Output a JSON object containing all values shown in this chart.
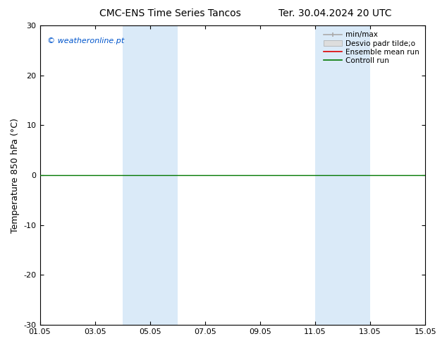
{
  "title_left": "CMC-ENS Time Series Tancos",
  "title_right": "Ter. 30.04.2024 20 UTC",
  "ylabel": "Temperature 850 hPa (°C)",
  "xlabel_ticks": [
    "01.05",
    "03.05",
    "05.05",
    "07.05",
    "09.05",
    "11.05",
    "13.05",
    "15.05"
  ],
  "tick_positions": [
    0,
    2,
    4,
    6,
    8,
    10,
    12,
    14
  ],
  "xlim": [
    0,
    14
  ],
  "ylim": [
    -30,
    30
  ],
  "yticks": [
    -30,
    -20,
    -10,
    0,
    10,
    20,
    30
  ],
  "watermark": "© weatheronline.pt",
  "watermark_color": "#0055cc",
  "shaded_bands": [
    {
      "start": 3,
      "end": 5
    },
    {
      "start": 10,
      "end": 12
    }
  ],
  "shaded_color": "#daeaf8",
  "control_run_color": "#007700",
  "ensemble_mean_color": "#dd0000",
  "minmax_color": "#aaaaaa",
  "stddev_color": "#dddddd",
  "background_color": "#ffffff",
  "title_fontsize": 10,
  "ylabel_fontsize": 9,
  "tick_fontsize": 8,
  "legend_fontsize": 7.5,
  "watermark_fontsize": 8
}
